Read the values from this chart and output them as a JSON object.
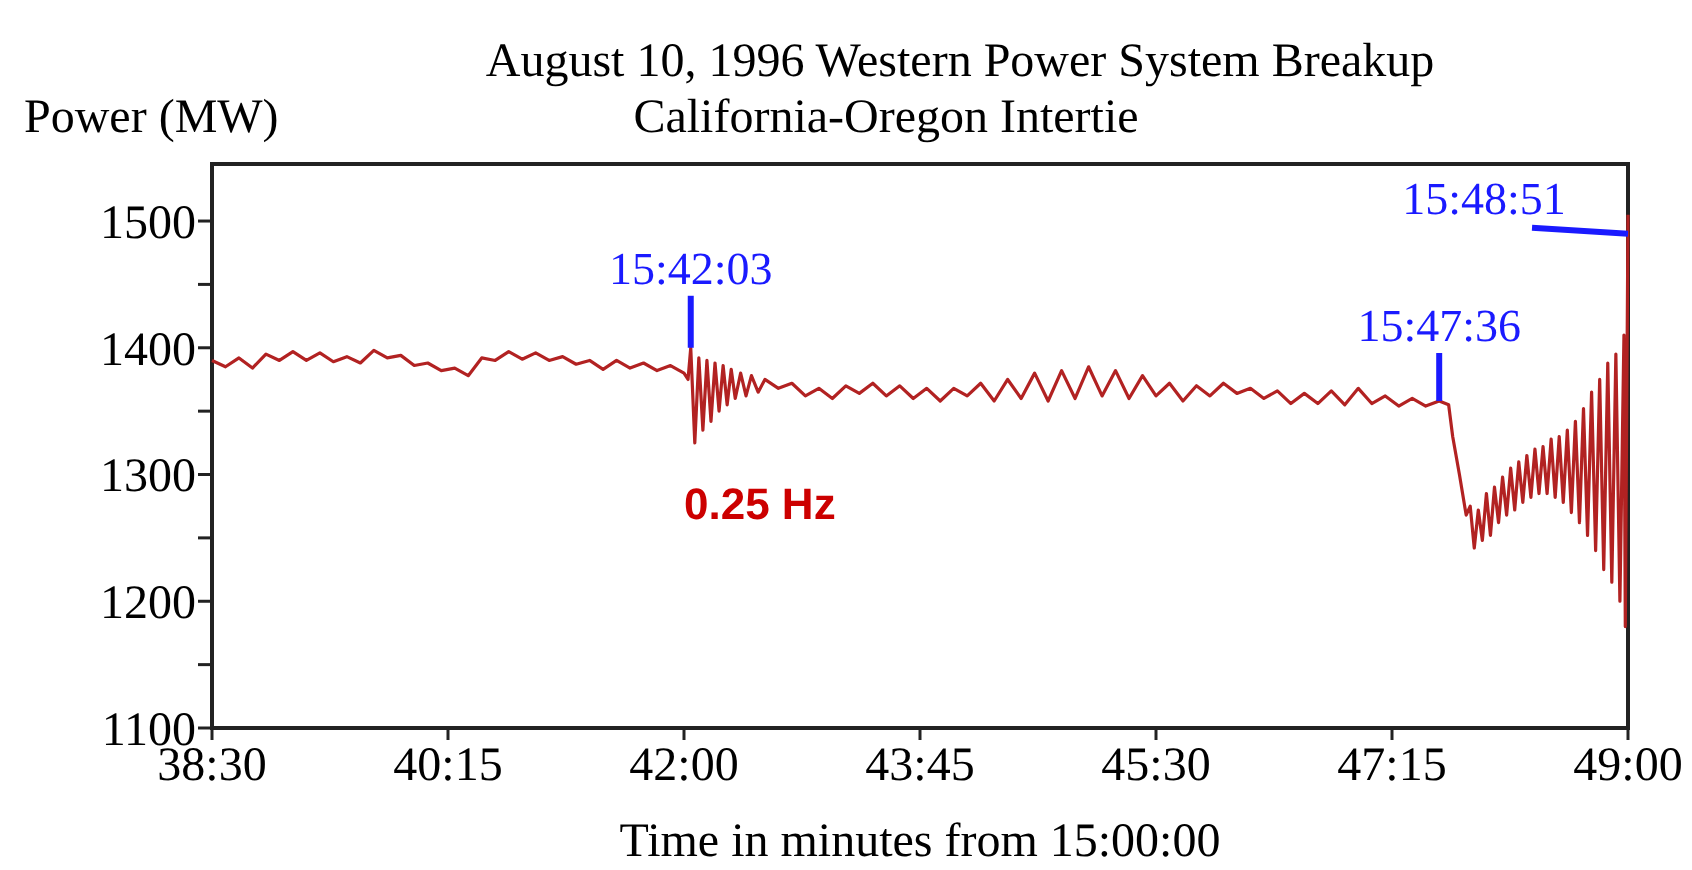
{
  "chart_data": {
    "type": "line",
    "title": "August 10, 1996 Western Power System Breakup",
    "subtitle": "California-Oregon Intertie",
    "xlabel": "Time in minutes from 15:00:00",
    "ylabel": "Power (MW)",
    "xlim": [
      38.5,
      49
    ],
    "xticks": [
      {
        "value": 38.5,
        "label": "38:30"
      },
      {
        "value": 40.25,
        "label": "40:15"
      },
      {
        "value": 42,
        "label": "42:00"
      },
      {
        "value": 43.75,
        "label": "43:45"
      },
      {
        "value": 45.5,
        "label": "45:30"
      },
      {
        "value": 47.25,
        "label": "47:15"
      },
      {
        "value": 49,
        "label": "49:00"
      }
    ],
    "ylim": [
      1100,
      1545
    ],
    "yticks": [
      1100,
      {
        "value": 1150,
        "label": null
      },
      1200,
      {
        "value": 1250,
        "label": null
      },
      1300,
      {
        "value": 1350,
        "label": null
      },
      1400,
      {
        "value": 1450,
        "label": null
      },
      1500
    ],
    "grid": false,
    "marker": "none",
    "line_style": "solid",
    "series": [
      {
        "color": "#b22222",
        "x": [
          38.5,
          38.6,
          38.7,
          38.8,
          38.9,
          39.0,
          39.1,
          39.2,
          39.3,
          39.4,
          39.5,
          39.6,
          39.7,
          39.8,
          39.9,
          40.0,
          40.1,
          40.2,
          40.3,
          40.4,
          40.5,
          40.6,
          40.7,
          40.8,
          40.9,
          41.0,
          41.1,
          41.2,
          41.3,
          41.4,
          41.5,
          41.6,
          41.7,
          41.8,
          41.9,
          42.0,
          42.03,
          42.05,
          42.08,
          42.11,
          42.14,
          42.17,
          42.2,
          42.23,
          42.26,
          42.29,
          42.32,
          42.35,
          42.38,
          42.42,
          42.46,
          42.5,
          42.55,
          42.6,
          42.7,
          42.8,
          42.9,
          43.0,
          43.1,
          43.2,
          43.3,
          43.4,
          43.5,
          43.6,
          43.7,
          43.8,
          43.9,
          44.0,
          44.1,
          44.2,
          44.3,
          44.4,
          44.5,
          44.6,
          44.7,
          44.8,
          44.9,
          45.0,
          45.1,
          45.2,
          45.3,
          45.4,
          45.5,
          45.6,
          45.7,
          45.8,
          45.9,
          46.0,
          46.1,
          46.2,
          46.3,
          46.4,
          46.5,
          46.6,
          46.7,
          46.8,
          46.9,
          47.0,
          47.1,
          47.2,
          47.3,
          47.4,
          47.5,
          47.6,
          47.67,
          47.7,
          47.75,
          47.8,
          47.83,
          47.86,
          47.89,
          47.92,
          47.95,
          47.98,
          48.01,
          48.04,
          48.07,
          48.1,
          48.13,
          48.16,
          48.19,
          48.22,
          48.25,
          48.28,
          48.31,
          48.34,
          48.37,
          48.4,
          48.43,
          48.46,
          48.49,
          48.52,
          48.55,
          48.58,
          48.61,
          48.64,
          48.67,
          48.7,
          48.73,
          48.76,
          48.79,
          48.82,
          48.85,
          48.88,
          48.91,
          48.94,
          48.97,
          48.98,
          49.0
        ],
        "values": [
          1390,
          1385,
          1392,
          1384,
          1395,
          1390,
          1397,
          1390,
          1396,
          1389,
          1393,
          1388,
          1398,
          1392,
          1394,
          1386,
          1388,
          1382,
          1384,
          1378,
          1392,
          1390,
          1397,
          1391,
          1396,
          1390,
          1393,
          1387,
          1390,
          1383,
          1390,
          1384,
          1388,
          1382,
          1386,
          1380,
          1375,
          1400,
          1325,
          1392,
          1335,
          1390,
          1342,
          1388,
          1350,
          1386,
          1355,
          1383,
          1360,
          1380,
          1362,
          1378,
          1365,
          1375,
          1368,
          1372,
          1362,
          1368,
          1360,
          1370,
          1364,
          1372,
          1362,
          1370,
          1360,
          1368,
          1358,
          1368,
          1362,
          1372,
          1358,
          1375,
          1360,
          1380,
          1358,
          1382,
          1360,
          1385,
          1362,
          1382,
          1360,
          1378,
          1362,
          1372,
          1358,
          1370,
          1362,
          1372,
          1364,
          1368,
          1360,
          1366,
          1356,
          1364,
          1356,
          1366,
          1355,
          1368,
          1356,
          1362,
          1354,
          1360,
          1354,
          1358,
          1355,
          1330,
          1300,
          1268,
          1275,
          1242,
          1272,
          1248,
          1285,
          1252,
          1290,
          1262,
          1298,
          1268,
          1305,
          1272,
          1310,
          1278,
          1315,
          1282,
          1320,
          1285,
          1322,
          1285,
          1328,
          1282,
          1330,
          1278,
          1335,
          1270,
          1342,
          1262,
          1352,
          1252,
          1365,
          1240,
          1375,
          1225,
          1388,
          1215,
          1395,
          1200,
          1410,
          1180,
          1505
        ]
      }
    ],
    "annotations": [
      {
        "text": "15:42:03",
        "x": 42.05,
        "y": 1400
      },
      {
        "text": "15:47:36",
        "x": 47.6,
        "y": 1358
      },
      {
        "text": "15:48:51",
        "x": 49,
        "y": 1490
      },
      "0.25 Hz"
    ]
  }
}
